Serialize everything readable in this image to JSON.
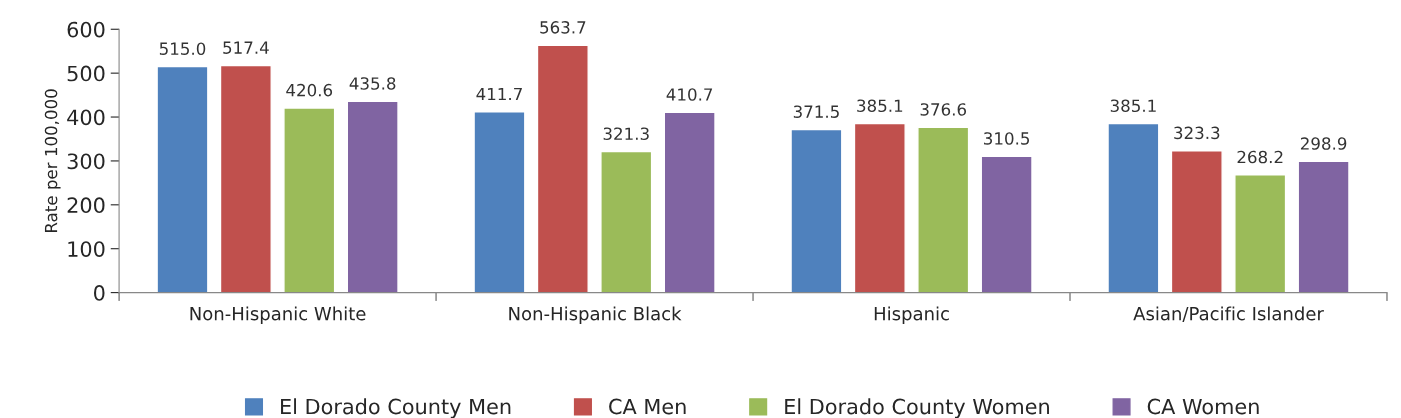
{
  "chart_data": {
    "type": "bar",
    "ylabel": "Rate per 100,000",
    "categories": [
      "Non-Hispanic White",
      "Non-Hispanic Black",
      "Hispanic",
      "Asian/Pacific Islander"
    ],
    "series": [
      {
        "name": "El Dorado County Men",
        "color": "#4f81bd",
        "values": [
          515.0,
          411.7,
          371.5,
          385.1
        ]
      },
      {
        "name": "CA Men",
        "color": "#c0504d",
        "values": [
          517.4,
          563.7,
          385.1,
          323.3
        ]
      },
      {
        "name": "El Dorado County Women",
        "color": "#9bbb59",
        "values": [
          420.6,
          321.3,
          376.6,
          268.2
        ]
      },
      {
        "name": "CA Women",
        "color": "#8064a2",
        "values": [
          435.8,
          410.7,
          310.5,
          298.9
        ]
      }
    ],
    "value_labels": [
      [
        "515.0",
        "411.7",
        "371.5",
        "385.1"
      ],
      [
        "517.4",
        "563.7",
        "385.1",
        "323.3"
      ],
      [
        "420.6",
        "321.3",
        "376.6",
        "268.2"
      ],
      [
        "435.8",
        "410.7",
        "310.5",
        "298.9"
      ]
    ],
    "ylim": [
      0,
      600
    ],
    "yticks": [
      0,
      100,
      200,
      300,
      400,
      500,
      600
    ],
    "grid": false,
    "legend": "bottom"
  }
}
